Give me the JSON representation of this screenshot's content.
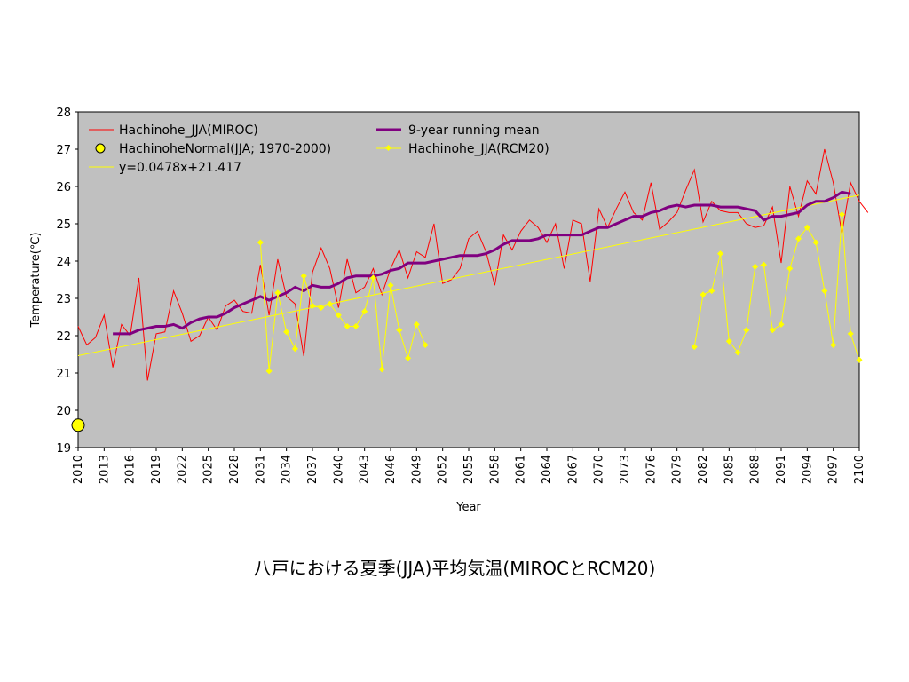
{
  "caption": "八戸における夏季(JJA)平均気温(MIROCとRCM20)",
  "chart_data": {
    "type": "line",
    "title": "",
    "xlabel": "Year",
    "ylabel": "Temperature(℃)",
    "xlim": [
      2010,
      2100
    ],
    "ylim": [
      19,
      28
    ],
    "y_ticks": [
      19,
      20,
      21,
      22,
      23,
      24,
      25,
      26,
      27,
      28
    ],
    "x_ticks": [
      2010,
      2013,
      2016,
      2019,
      2022,
      2025,
      2028,
      2031,
      2034,
      2037,
      2040,
      2043,
      2046,
      2049,
      2052,
      2055,
      2058,
      2061,
      2064,
      2067,
      2070,
      2073,
      2076,
      2079,
      2082,
      2085,
      2088,
      2091,
      2094,
      2097,
      2100
    ],
    "plot_background": "#c0c0c0",
    "grid": false,
    "legend_position": "top-left",
    "colors": {
      "miroc": "#ff0000",
      "running_mean": "#800080",
      "normal": "#ffff00",
      "rcm": "#ffff00",
      "trend": "#ffff00"
    },
    "legend": {
      "miroc": "Hachinohe_JJA(MIROC)",
      "normal": "HachinoheNormal(JJA; 1970-2000)",
      "trend": "y=0.0478x+21.417",
      "running_mean": "9-year running mean",
      "rcm": "Hachinohe_JJA(RCM20)"
    },
    "trendline": {
      "slope": 0.0478,
      "intercept": 21.417
    },
    "normal_point": {
      "x": 2010,
      "y": 19.6
    },
    "series": [
      {
        "name": "Hachinohe_JJA(MIROC)",
        "x_start": 2010,
        "values": [
          22.25,
          21.75,
          21.95,
          22.55,
          21.15,
          22.3,
          22.0,
          23.55,
          20.8,
          22.05,
          22.1,
          23.2,
          22.6,
          21.85,
          22.0,
          22.5,
          22.15,
          22.8,
          22.95,
          22.65,
          22.6,
          23.9,
          22.55,
          24.05,
          23.05,
          22.85,
          21.45,
          23.7,
          24.35,
          23.8,
          22.75,
          24.05,
          23.15,
          23.3,
          23.8,
          23.1,
          23.8,
          24.3,
          23.55,
          24.25,
          24.1,
          25.0,
          23.4,
          23.5,
          23.8,
          24.6,
          24.8,
          24.25,
          23.35,
          24.7,
          24.3,
          24.8,
          25.1,
          24.9,
          24.5,
          25.0,
          23.8,
          25.1,
          25.0,
          23.45,
          25.4,
          24.9,
          25.4,
          25.85,
          25.3,
          25.1,
          26.1,
          24.85,
          25.05,
          25.3,
          25.9,
          26.45,
          25.05,
          25.6,
          25.35,
          25.3,
          25.3,
          25.0,
          24.9,
          24.95,
          25.45,
          23.95,
          26.0,
          25.2,
          26.15,
          25.8,
          27.0,
          26.1,
          24.75,
          26.1,
          25.6,
          25.3
        ]
      },
      {
        "name": "9-year running mean",
        "x_start": 2014,
        "values": [
          22.05,
          22.05,
          22.05,
          22.15,
          22.2,
          22.25,
          22.25,
          22.3,
          22.2,
          22.35,
          22.45,
          22.5,
          22.5,
          22.6,
          22.75,
          22.85,
          22.95,
          23.05,
          22.95,
          23.05,
          23.15,
          23.3,
          23.2,
          23.35,
          23.3,
          23.3,
          23.4,
          23.55,
          23.6,
          23.6,
          23.6,
          23.65,
          23.75,
          23.8,
          23.95,
          23.95,
          23.95,
          24.0,
          24.05,
          24.1,
          24.15,
          24.15,
          24.15,
          24.2,
          24.3,
          24.45,
          24.55,
          24.55,
          24.55,
          24.6,
          24.7,
          24.7,
          24.7,
          24.7,
          24.7,
          24.8,
          24.9,
          24.9,
          25.0,
          25.1,
          25.2,
          25.2,
          25.3,
          25.35,
          25.45,
          25.5,
          25.45,
          25.5,
          25.5,
          25.5,
          25.45,
          25.45,
          25.45,
          25.4,
          25.35,
          25.1,
          25.2,
          25.2,
          25.25,
          25.3,
          25.5,
          25.6,
          25.6,
          25.7,
          25.85,
          25.8
        ]
      },
      {
        "name": "Hachinohe_JJA(RCM20)",
        "segments": [
          {
            "x": [
              2031,
              2032,
              2033,
              2034,
              2035,
              2036,
              2037,
              2038,
              2039,
              2040,
              2041,
              2042,
              2043,
              2044,
              2045,
              2046,
              2047,
              2048,
              2049,
              2050
            ],
            "y": [
              24.5,
              21.05,
              23.15,
              22.1,
              21.65,
              23.6,
              22.8,
              22.75,
              22.85,
              22.55,
              22.25,
              22.25,
              22.65,
              23.55,
              21.1,
              23.35,
              22.15,
              21.4,
              22.3,
              21.75
            ]
          },
          {
            "x": [
              2081,
              2082,
              2083,
              2084,
              2085,
              2086,
              2087,
              2088,
              2089,
              2090,
              2091,
              2092,
              2093,
              2094,
              2095,
              2096,
              2097,
              2098,
              2099,
              2100
            ],
            "y": [
              21.7,
              23.1,
              23.2,
              24.2,
              21.85,
              21.55,
              22.15,
              23.85,
              23.9,
              22.15,
              22.3,
              23.8,
              24.6,
              24.9,
              24.5,
              23.2,
              21.75,
              25.25,
              22.05,
              21.35
            ]
          }
        ]
      }
    ]
  }
}
